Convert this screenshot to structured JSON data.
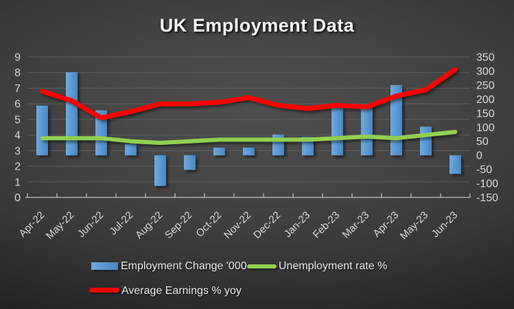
{
  "chart_data": {
    "type": "combo",
    "title": "UK Employment Data",
    "categories": [
      "Apr-22",
      "May-22",
      "Jun-22",
      "Jul-22",
      "Aug-22",
      "Sep-22",
      "Oct-22",
      "Nov-22",
      "Dec-22",
      "Jan-23",
      "Feb-23",
      "Mar-23",
      "Apr-23",
      "May-23",
      "Jun-23"
    ],
    "series": [
      {
        "name": "Employment Change '000",
        "type": "bar",
        "axis": "right",
        "color": "#5B9BD5",
        "values": [
          177,
          296,
          160,
          40,
          -109,
          -52,
          27,
          27,
          74,
          65,
          169,
          182,
          250,
          102,
          -66
        ]
      },
      {
        "name": "Unemployment rate %",
        "type": "line",
        "axis": "left",
        "color": "#92D050",
        "values": [
          3.8,
          3.8,
          3.8,
          3.6,
          3.5,
          3.6,
          3.7,
          3.7,
          3.7,
          3.7,
          3.8,
          3.9,
          3.8,
          4.0,
          4.2
        ]
      },
      {
        "name": "Average Earnings % yoy",
        "type": "line",
        "axis": "left",
        "color": "#FF0000",
        "values": [
          6.8,
          6.2,
          5.1,
          5.5,
          6.0,
          6.0,
          6.1,
          6.4,
          5.9,
          5.7,
          5.9,
          5.8,
          6.5,
          6.9,
          8.2
        ]
      }
    ],
    "left_axis": {
      "min": 0,
      "max": 9,
      "tick_labels": [
        "9",
        "8",
        "7",
        "6",
        "5",
        "4",
        "3",
        "2",
        "1",
        "0"
      ]
    },
    "right_axis": {
      "min": -150,
      "max": 350,
      "tick_labels": [
        "350",
        "300",
        "250",
        "200",
        "150",
        "100",
        "50",
        "0",
        "-50",
        "-100",
        "-150"
      ]
    },
    "grid": true,
    "legend_position": "bottom",
    "colors": {
      "background": "#3d3d3d",
      "gridline": "#5f5f5f",
      "axis_line": "#bfbfbf",
      "tick_text": "#d9d9d9",
      "legend_text": "#e8e8e8",
      "title_text": "#f4f4f4"
    }
  }
}
